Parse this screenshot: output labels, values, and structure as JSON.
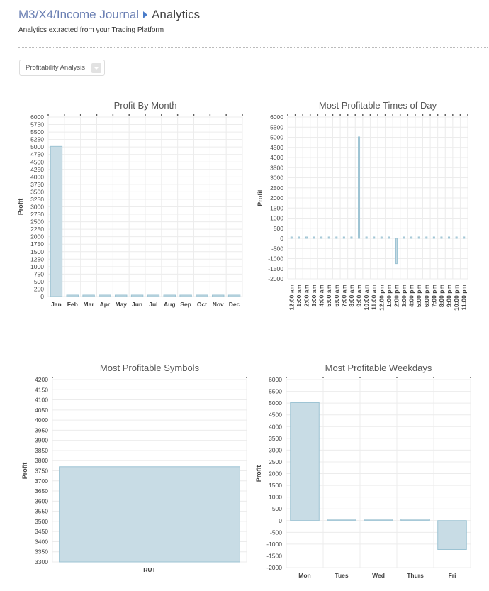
{
  "header": {
    "breadcrumb_parent": "M3/X4/Income Journal",
    "breadcrumb_current": "Analytics",
    "subtitle": "Analytics extracted from your Trading Platform"
  },
  "filter": {
    "selected": "Profitability Analysis"
  },
  "colors": {
    "bar_fill": "#c8dce5",
    "bar_stroke": "#9cc3d3",
    "link": "#6a7fb3",
    "separator": "#4a7cc9"
  },
  "chart_data": [
    {
      "id": "profit-by-month",
      "type": "bar",
      "title": "Profit By Month",
      "ylabel": "Profit",
      "xlabel": "",
      "ylim": [
        0,
        6000
      ],
      "ytick_step": 250,
      "grid": true,
      "categories": [
        "Jan",
        "Feb",
        "Mar",
        "Apr",
        "May",
        "Jun",
        "Jul",
        "Aug",
        "Sep",
        "Oct",
        "Nov",
        "Dec"
      ],
      "values": [
        5020,
        0,
        0,
        0,
        0,
        0,
        0,
        0,
        0,
        0,
        0,
        0
      ]
    },
    {
      "id": "most-profitable-times-of-day",
      "type": "bar",
      "title": "Most Profitable Times of Day",
      "ylabel": "Profit",
      "xlabel": "",
      "ylim": [
        -2000,
        6000
      ],
      "ytick_step": 500,
      "grid": true,
      "rotate_labels": true,
      "categories": [
        "12:00 am",
        "1:00 am",
        "2:00 am",
        "3:00 am",
        "4:00 am",
        "5:00 am",
        "6:00 am",
        "7:00 am",
        "8:00 am",
        "9:00 am",
        "10:00 am",
        "11:00 am",
        "12:00 pm",
        "1:00 pm",
        "2:00 pm",
        "3:00 pm",
        "4:00 pm",
        "5:00 pm",
        "6:00 pm",
        "7:00 pm",
        "8:00 pm",
        "9:00 pm",
        "10:00 pm",
        "11:00 pm"
      ],
      "values": [
        0,
        0,
        0,
        0,
        0,
        0,
        0,
        0,
        0,
        5020,
        0,
        0,
        0,
        0,
        -1250,
        0,
        0,
        0,
        0,
        0,
        0,
        0,
        0,
        0
      ]
    },
    {
      "id": "most-profitable-symbols",
      "type": "bar",
      "title": "Most Profitable Symbols",
      "ylabel": "Profit",
      "xlabel": "",
      "ylim": [
        3300,
        4200
      ],
      "ytick_step": 50,
      "grid": true,
      "categories": [
        "RUT"
      ],
      "values": [
        3770
      ]
    },
    {
      "id": "most-profitable-weekdays",
      "type": "bar",
      "title": "Most Profitable Weekdays",
      "ylabel": "Profit",
      "xlabel": "",
      "ylim": [
        -2000,
        6000
      ],
      "ytick_step": 500,
      "grid": true,
      "categories": [
        "Mon",
        "Tues",
        "Wed",
        "Thurs",
        "Fri"
      ],
      "values": [
        5020,
        0,
        0,
        0,
        -1230
      ]
    }
  ]
}
